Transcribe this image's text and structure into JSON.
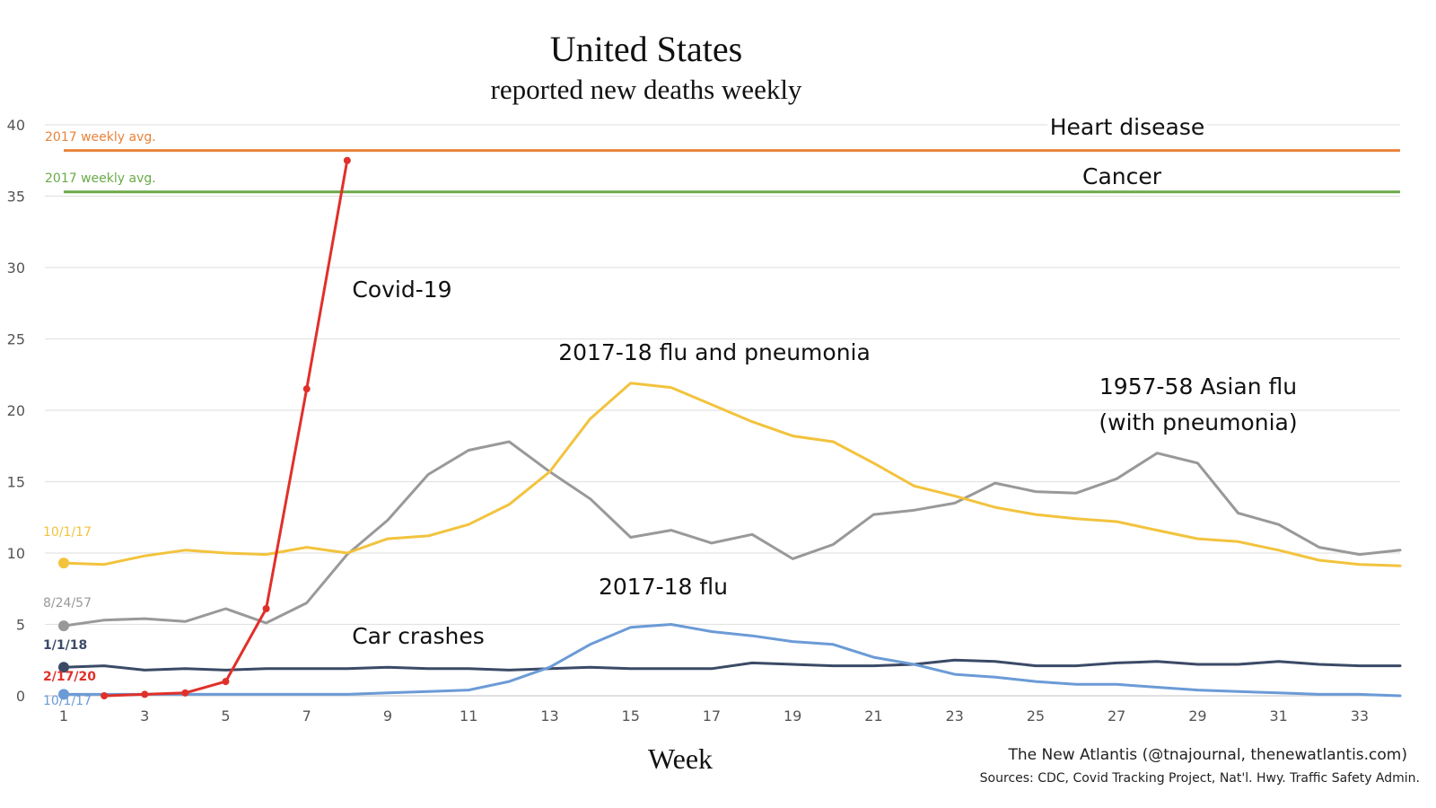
{
  "chart_data": {
    "type": "line",
    "title": "United States",
    "subtitle": "reported new deaths weekly",
    "xlabel": "Week",
    "ylabel": "",
    "xlim": [
      1,
      34
    ],
    "ylim": [
      0,
      40
    ],
    "x_ticks": [
      1,
      3,
      5,
      7,
      9,
      11,
      13,
      15,
      17,
      19,
      21,
      23,
      25,
      27,
      29,
      31,
      33
    ],
    "y_ticks": [
      0,
      5,
      10,
      15,
      20,
      25,
      30,
      35,
      40
    ],
    "grid": "horizontal",
    "reference_lines": [
      {
        "name": "Heart disease",
        "value": 38.2,
        "color": "#e8833a",
        "note": "2017 weekly avg."
      },
      {
        "name": "Cancer",
        "value": 35.3,
        "color": "#6aaa48",
        "note": "2017 weekly avg."
      }
    ],
    "series": [
      {
        "name": "1957-58 Asian flu (with pneumonia)",
        "label_lines": [
          "1957-58 Asian flu",
          "(with pneumonia)"
        ],
        "start_label": "8/24/57",
        "color": "#999999",
        "x": [
          1,
          2,
          3,
          4,
          5,
          6,
          7,
          8,
          9,
          10,
          11,
          12,
          13,
          14,
          15,
          16,
          17,
          18,
          19,
          20,
          21,
          22,
          23,
          24,
          25,
          26,
          27,
          28,
          29,
          30,
          31,
          32,
          33,
          34
        ],
        "values": [
          4.9,
          5.3,
          5.4,
          5.2,
          6.1,
          5.1,
          6.5,
          9.9,
          12.3,
          15.5,
          17.2,
          17.8,
          15.7,
          13.8,
          11.1,
          11.6,
          10.7,
          11.3,
          9.6,
          10.6,
          12.7,
          13.0,
          13.5,
          14.9,
          14.3,
          14.2,
          15.2,
          17.0,
          16.3,
          12.8,
          12.0,
          10.4,
          9.9,
          10.2
        ]
      },
      {
        "name": "2017-18 flu and pneumonia",
        "label_lines": [
          "2017-18 flu and pneumonia"
        ],
        "start_label": "10/1/17",
        "color": "#f2c33d",
        "x": [
          1,
          2,
          3,
          4,
          5,
          6,
          7,
          8,
          9,
          10,
          11,
          12,
          13,
          14,
          15,
          16,
          17,
          18,
          19,
          20,
          21,
          22,
          23,
          24,
          25,
          26,
          27,
          28,
          29,
          30,
          31,
          32,
          33,
          34
        ],
        "values": [
          9.3,
          9.2,
          9.8,
          10.2,
          10.0,
          9.9,
          10.4,
          10.0,
          11.0,
          11.2,
          12.0,
          13.4,
          15.7,
          19.4,
          21.9,
          21.6,
          20.4,
          19.2,
          18.2,
          17.8,
          16.3,
          14.7,
          14.0,
          13.2,
          12.7,
          12.4,
          12.2,
          11.6,
          11.0,
          10.8,
          10.2,
          9.5,
          9.2,
          9.1
        ]
      },
      {
        "name": "Car crashes",
        "label_lines": [
          "Car crashes"
        ],
        "start_label": "1/1/18",
        "color": "#3b4a66",
        "x": [
          1,
          2,
          3,
          4,
          5,
          6,
          7,
          8,
          9,
          10,
          11,
          12,
          13,
          14,
          15,
          16,
          17,
          18,
          19,
          20,
          21,
          22,
          23,
          24,
          25,
          26,
          27,
          28,
          29,
          30,
          31,
          32,
          33,
          34
        ],
        "values": [
          2.0,
          2.1,
          1.8,
          1.9,
          1.8,
          1.9,
          1.9,
          1.9,
          2.0,
          1.9,
          1.9,
          1.8,
          1.9,
          2.0,
          1.9,
          1.9,
          1.9,
          2.3,
          2.2,
          2.1,
          2.1,
          2.2,
          2.5,
          2.4,
          2.1,
          2.1,
          2.3,
          2.4,
          2.2,
          2.2,
          2.4,
          2.2,
          2.1,
          2.1
        ]
      },
      {
        "name": "2017-18 flu",
        "label_lines": [
          "2017-18 flu"
        ],
        "start_label": "10/1/17",
        "color": "#6b9bd6",
        "x": [
          1,
          2,
          3,
          4,
          5,
          6,
          7,
          8,
          9,
          10,
          11,
          12,
          13,
          14,
          15,
          16,
          17,
          18,
          19,
          20,
          21,
          22,
          23,
          24,
          25,
          26,
          27,
          28,
          29,
          30,
          31,
          32,
          33,
          34
        ],
        "values": [
          0.1,
          0.1,
          0.1,
          0.1,
          0.1,
          0.1,
          0.1,
          0.1,
          0.2,
          0.3,
          0.4,
          1.0,
          2.0,
          3.6,
          4.8,
          5.0,
          4.5,
          4.2,
          3.8,
          3.6,
          2.7,
          2.2,
          1.5,
          1.3,
          1.0,
          0.8,
          0.8,
          0.6,
          0.4,
          0.3,
          0.2,
          0.1,
          0.1,
          0.0
        ]
      },
      {
        "name": "Covid-19",
        "label_lines": [
          "Covid-19"
        ],
        "start_label": "2/17/20",
        "color": "#e0302a",
        "markers": true,
        "x": [
          2,
          3,
          4,
          5,
          6,
          7,
          8
        ],
        "values": [
          0.0,
          0.1,
          0.2,
          1.0,
          6.1,
          21.5,
          37.5
        ]
      }
    ],
    "credit": "The New Atlantis (@tnajournal, thenewatlantis.com)",
    "sources": "Sources: CDC, Covid Tracking Project, Nat'l. Hwy. Traffic Safety Admin."
  }
}
